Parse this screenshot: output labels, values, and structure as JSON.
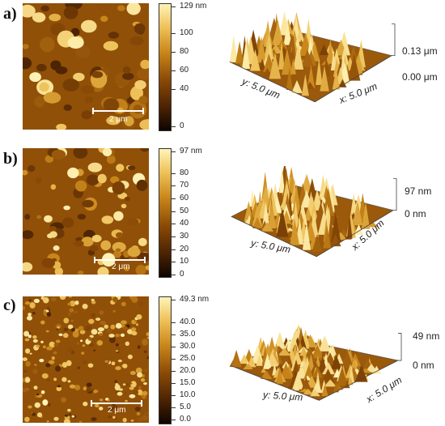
{
  "panels": [
    {
      "label": "a)",
      "scale_bar": "2 μm",
      "colorbar_ticks": [
        "129 nm",
        "100",
        "80",
        "60",
        "40",
        "0"
      ],
      "z_top": "0.13 μm",
      "z_bottom": "0.00 μm",
      "y_axis": "y: 5.0 μm",
      "x_axis": "x: 5.0 μm"
    },
    {
      "label": "b)",
      "scale_bar": "2 μm",
      "colorbar_ticks": [
        "97 nm",
        "80",
        "70",
        "60",
        "50",
        "40",
        "30",
        "20",
        "10",
        "0"
      ],
      "z_top": "97 nm",
      "z_bottom": "0 nm",
      "y_axis": "y: 5.0 μm",
      "x_axis": "x: 5.0 μm"
    },
    {
      "label": "c)",
      "scale_bar": "2 μm",
      "colorbar_ticks": [
        "49.3 nm",
        "40.0",
        "35.0",
        "30.0",
        "25.0",
        "20.0",
        "15.0",
        "10.0",
        "5.0",
        "0.0"
      ],
      "z_top": "49 nm",
      "z_bottom": "0 nm",
      "y_axis": "y: 5.0 μm",
      "x_axis": "x: 5.0 μm"
    }
  ]
}
